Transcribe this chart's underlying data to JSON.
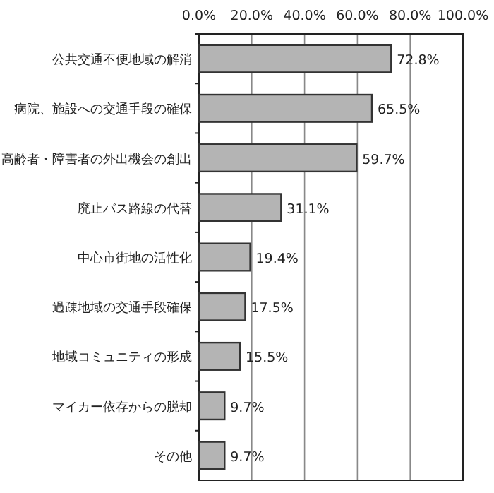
{
  "chart_data": {
    "type": "bar",
    "orientation": "horizontal",
    "categories": [
      "公共交通不便地域の解消",
      "病院、施設への交通手段の確保",
      "高齢者・障害者の外出機会の創出",
      "廃止バス路線の代替",
      "中心市街地の活性化",
      "過疎地域の交通手段確保",
      "地域コミュニティの形成",
      "マイカー依存からの脱却",
      "その他"
    ],
    "values": [
      72.8,
      65.5,
      59.7,
      31.1,
      19.4,
      17.5,
      15.5,
      9.7,
      9.7
    ],
    "value_labels": [
      "72.8%",
      "65.5%",
      "59.7%",
      "31.1%",
      "19.4%",
      "17.5%",
      "15.5%",
      "9.7%",
      "9.7%"
    ],
    "color": "#b4b4b4",
    "xlim": [
      0,
      100
    ],
    "xticks": [
      {
        "value": 0,
        "label": "0.0%"
      },
      {
        "value": 20,
        "label": "20.0%"
      },
      {
        "value": 40,
        "label": "40.0%"
      },
      {
        "value": 60,
        "label": "60.0%"
      },
      {
        "value": 80,
        "label": "80.0%"
      },
      {
        "value": 100,
        "label": "100.0%"
      }
    ],
    "grid": "x"
  }
}
